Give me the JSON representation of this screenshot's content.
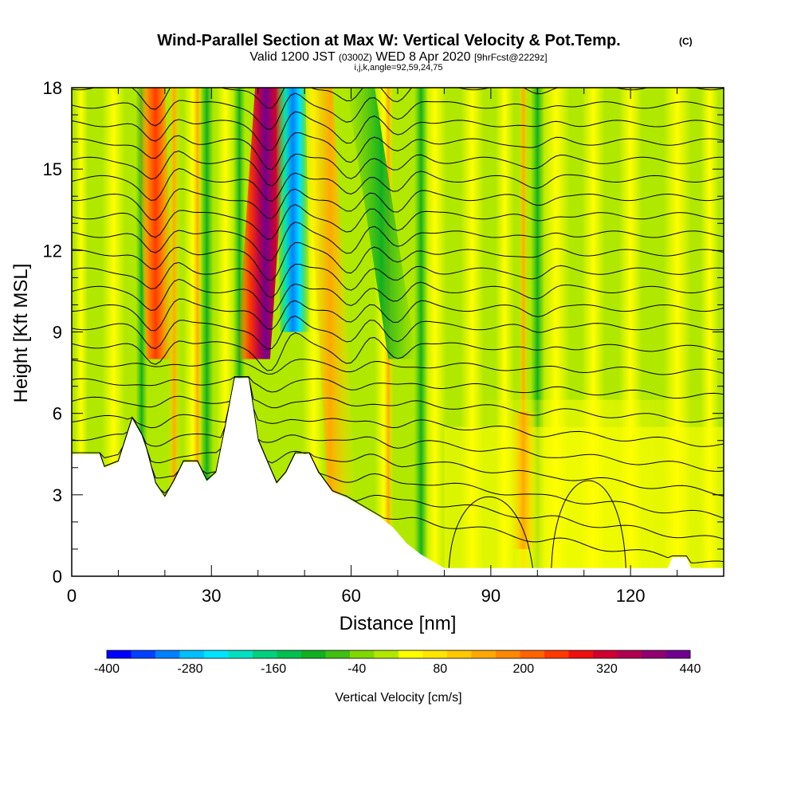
{
  "header": {
    "title": "Wind-Parallel Section at Max W: Vertical Velocity & Pot.Temp.",
    "title_mark": "(C)",
    "valid_prefix": "Valid 1200 JST",
    "valid_zone": "(0300Z)",
    "valid_date": "WED 8 Apr 2020",
    "forecast": "[9hrFcst@2229z]",
    "indices": "i,j,k,angle=92,59,24,75"
  },
  "chart_data": {
    "type": "heatmap",
    "xlabel": "Distance [nm]",
    "ylabel": "Height [Kft MSL]",
    "xlim": [
      0,
      140
    ],
    "ylim": [
      0,
      18
    ],
    "x_ticks": [
      0,
      30,
      60,
      90,
      120
    ],
    "x_tick_labels": [
      "0",
      "30",
      "60",
      "90",
      "120"
    ],
    "y_ticks": [
      0,
      3,
      6,
      9,
      12,
      15,
      18
    ],
    "y_tick_labels": [
      "0",
      "3",
      "6",
      "9",
      "12",
      "15",
      "18"
    ],
    "colorbar": {
      "label": "Vertical Velocity [cm/s]",
      "min": -400,
      "max": 440,
      "step": 40,
      "tick_values": [
        -400,
        -280,
        -160,
        -40,
        80,
        200,
        320,
        440
      ],
      "tick_labels": [
        "-400",
        "-280",
        "-160",
        "-40",
        "80",
        "200",
        "320",
        "440"
      ],
      "colors": [
        "#0000ff",
        "#0040ff",
        "#0080ff",
        "#00c0ff",
        "#00e5ff",
        "#00e0c0",
        "#00d080",
        "#00c050",
        "#10b020",
        "#40c010",
        "#80d800",
        "#b0e800",
        "#ffff00",
        "#ffe600",
        "#ffc800",
        "#ffa800",
        "#ff8800",
        "#ff6400",
        "#ff3a00",
        "#f01010",
        "#d00030",
        "#b00050",
        "#900070",
        "#700090"
      ]
    },
    "terrain_kft": [
      [
        0,
        4.5
      ],
      [
        6,
        4.5
      ],
      [
        7,
        4.0
      ],
      [
        10,
        4.2
      ],
      [
        13,
        5.8
      ],
      [
        15,
        5.2
      ],
      [
        16,
        4.7
      ],
      [
        18,
        3.4
      ],
      [
        20,
        2.9
      ],
      [
        22,
        3.5
      ],
      [
        24,
        4.2
      ],
      [
        27,
        4.2
      ],
      [
        29,
        3.5
      ],
      [
        31,
        3.8
      ],
      [
        33,
        5.5
      ],
      [
        35,
        7.3
      ],
      [
        38,
        7.3
      ],
      [
        40,
        5.0
      ],
      [
        42,
        4.2
      ],
      [
        44,
        3.4
      ],
      [
        46,
        3.8
      ],
      [
        48,
        4.5
      ],
      [
        51,
        4.5
      ],
      [
        53,
        3.8
      ],
      [
        56,
        3.1
      ],
      [
        59,
        2.9
      ],
      [
        63,
        2.5
      ],
      [
        66,
        2.2
      ],
      [
        69,
        1.8
      ],
      [
        72,
        1.2
      ],
      [
        75,
        0.8
      ],
      [
        78,
        0.5
      ],
      [
        80,
        0.3
      ],
      [
        128,
        0.3
      ],
      [
        129,
        0.7
      ],
      [
        132,
        0.7
      ],
      [
        133,
        0.3
      ],
      [
        140,
        0.3
      ]
    ],
    "features": [
      {
        "name": "updraft",
        "x0": 19,
        "x1": 17,
        "y0": 8,
        "y1": 18,
        "w_cm_s": 200
      },
      {
        "name": "updraft",
        "x0": 39,
        "x1": 43,
        "y0": 8,
        "y1": 18,
        "w_cm_s": 440
      },
      {
        "name": "downdraft",
        "x0": 48,
        "x1": 47,
        "y0": 9,
        "y1": 18,
        "w_cm_s": -300
      },
      {
        "name": "updraft",
        "x0": 58,
        "x1": 53,
        "y0": 3,
        "y1": 18,
        "w_cm_s": 120
      },
      {
        "name": "downdraft",
        "x0": 71,
        "x1": 62,
        "y0": 8,
        "y1": 18,
        "w_cm_s": -120
      },
      {
        "name": "updraft",
        "x0": 97,
        "x1": 97,
        "y0": 1,
        "y1": 6,
        "w_cm_s": 80
      }
    ]
  }
}
